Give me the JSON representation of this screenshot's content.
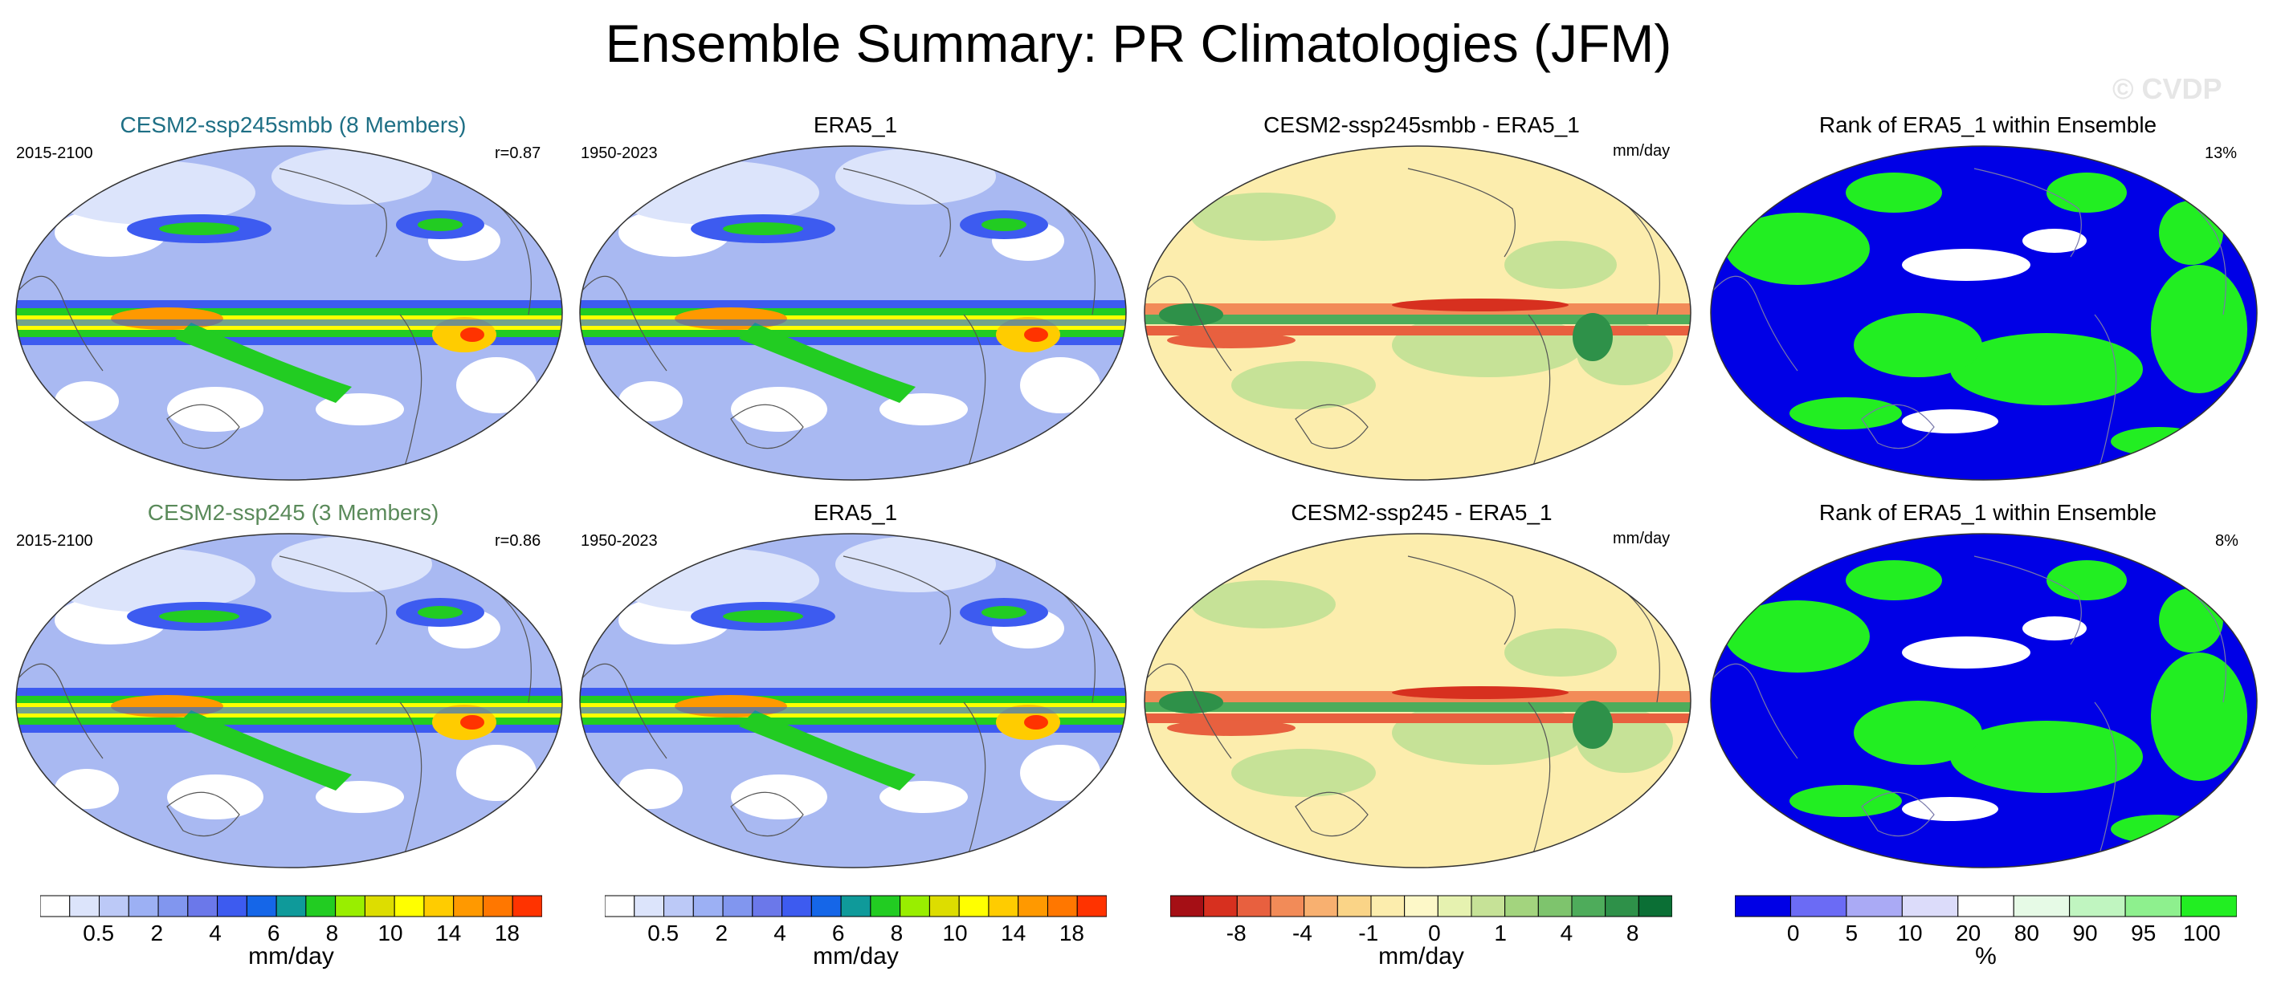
{
  "title": "Ensemble Summary: PR Climatologies (JFM)",
  "watermark": "© CVDP",
  "colors": {
    "model_title_row1": "#1e6f85",
    "model_title_row2": "#5a8a5a",
    "rank_below": "#0000e6",
    "rank_above": "#22ee22"
  },
  "rows": [
    {
      "model": {
        "title": "CESM2-ssp245smbb (8 Members)",
        "years": "2015-2100",
        "corr": "r=0.87"
      },
      "obs": {
        "title": "ERA5_1",
        "years": "1950-2023"
      },
      "diff": {
        "title": "CESM2-ssp245smbb - ERA5_1",
        "units": "mm/day"
      },
      "rank": {
        "title": "Rank of ERA5_1 within Ensemble",
        "pct": "13%"
      }
    },
    {
      "model": {
        "title": "CESM2-ssp245 (3 Members)",
        "years": "2015-2100",
        "corr": "r=0.86"
      },
      "obs": {
        "title": "ERA5_1",
        "years": "1950-2023"
      },
      "diff": {
        "title": "CESM2-ssp245 - ERA5_1",
        "units": "mm/day"
      },
      "rank": {
        "title": "Rank of ERA5_1 within Ensemble",
        "pct": "8%"
      }
    }
  ],
  "colorbars": {
    "precip": {
      "unit": "mm/day",
      "labels": [
        "0.5",
        "2",
        "4",
        "6",
        "8",
        "10",
        "14",
        "18"
      ],
      "colors": [
        "#ffffff",
        "#dce4fb",
        "#bcc9f7",
        "#9cb0f4",
        "#8196ef",
        "#6b78ea",
        "#3d5bf0",
        "#1566e8",
        "#0f9a9a",
        "#22cc22",
        "#99ee00",
        "#dddd00",
        "#ffff00",
        "#ffcc00",
        "#ff9900",
        "#ff7700",
        "#ff3300"
      ]
    },
    "diff": {
      "unit": "mm/day",
      "labels": [
        "-8",
        "-4",
        "-1",
        "0",
        "1",
        "4",
        "8"
      ],
      "colors": [
        "#a50f15",
        "#d7301f",
        "#e8603f",
        "#f28b58",
        "#f8b070",
        "#fad487",
        "#fcedad",
        "#fdf8c8",
        "#e6f2b0",
        "#c6e297",
        "#a3d47e",
        "#7ec46d",
        "#4eac5b",
        "#2e9149",
        "#0b6f35"
      ]
    },
    "rank": {
      "unit": "%",
      "labels": [
        "0",
        "5",
        "10",
        "20",
        "80",
        "90",
        "95",
        "100"
      ],
      "colors": [
        "#0000e6",
        "#6b6bf5",
        "#aaaaf5",
        "#dcdcfa",
        "#ffffff",
        "#e6fae6",
        "#c0f5c0",
        "#8ef08e",
        "#22ee22"
      ]
    }
  },
  "chart_data": [
    {
      "type": "heatmap",
      "title": "CESM2-ssp245smbb (8 Members)",
      "units": "mm/day",
      "period": "2015-2100",
      "pattern_correlation": 0.87,
      "contour_levels": [
        0.5,
        1,
        2,
        3,
        4,
        5,
        6,
        7,
        8,
        9,
        10,
        12,
        14,
        16,
        18
      ]
    },
    {
      "type": "heatmap",
      "title": "ERA5_1",
      "units": "mm/day",
      "period": "1950-2023",
      "contour_levels": [
        0.5,
        1,
        2,
        3,
        4,
        5,
        6,
        7,
        8,
        9,
        10,
        12,
        14,
        16,
        18
      ]
    },
    {
      "type": "heatmap",
      "title": "CESM2-ssp245smbb - ERA5_1",
      "units": "mm/day",
      "contour_levels": [
        -8,
        -6,
        -4,
        -2,
        -1,
        -0.5,
        0,
        0.5,
        1,
        2,
        4,
        6,
        8
      ]
    },
    {
      "type": "heatmap",
      "title": "Rank of ERA5_1 within Ensemble",
      "units": "%",
      "percent_label": "13%",
      "contour_levels": [
        0,
        5,
        10,
        20,
        80,
        90,
        95,
        100
      ]
    },
    {
      "type": "heatmap",
      "title": "CESM2-ssp245 (3 Members)",
      "units": "mm/day",
      "period": "2015-2100",
      "pattern_correlation": 0.86,
      "contour_levels": [
        0.5,
        1,
        2,
        3,
        4,
        5,
        6,
        7,
        8,
        9,
        10,
        12,
        14,
        16,
        18
      ]
    },
    {
      "type": "heatmap",
      "title": "ERA5_1",
      "units": "mm/day",
      "period": "1950-2023",
      "contour_levels": [
        0.5,
        1,
        2,
        3,
        4,
        5,
        6,
        7,
        8,
        9,
        10,
        12,
        14,
        16,
        18
      ]
    },
    {
      "type": "heatmap",
      "title": "CESM2-ssp245 - ERA5_1",
      "units": "mm/day",
      "contour_levels": [
        -8,
        -6,
        -4,
        -2,
        -1,
        -0.5,
        0,
        0.5,
        1,
        2,
        4,
        6,
        8
      ]
    },
    {
      "type": "heatmap",
      "title": "Rank of ERA5_1 within Ensemble",
      "units": "%",
      "percent_label": "8%",
      "contour_levels": [
        0,
        5,
        10,
        20,
        80,
        90,
        95,
        100
      ]
    }
  ]
}
